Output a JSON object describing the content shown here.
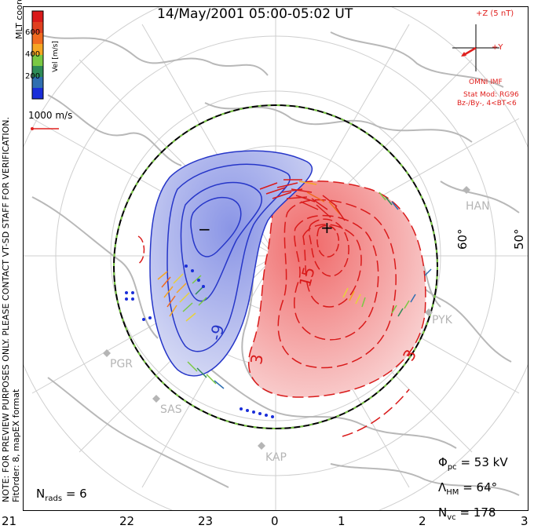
{
  "title": "14/May/2001  05:00-05:02  UT",
  "note": {
    "line1": "NOTE: FOR PREVIEW PURPOSES ONLY. PLEASE CONTACT VT-SD STAFF FOR VERIFICATION.",
    "line2": "FitOrder: 8, mapEX format"
  },
  "colorbar": {
    "title": "MLT coordinates",
    "unit": "Vel [m/s]",
    "ticks": [
      "600",
      "400",
      "200"
    ],
    "colors": [
      "#d91a1a",
      "#f06a1f",
      "#f5a623",
      "#e8d13a",
      "#7ac943",
      "#2e8b57",
      "#2f6fb0",
      "#1a2ed9"
    ]
  },
  "scale_vector": {
    "label": "1000 m/s",
    "color": "#e0201e"
  },
  "imf": {
    "z_label": "+Z (5 nT)",
    "y_label": "+Y",
    "source": "OMNI IMF",
    "stat_mod": "Stat Mod: RG96",
    "condition": "Bz-/By-, 4<BT<6",
    "color": "#e0201e"
  },
  "latitude_labels": [
    "60°",
    "50°"
  ],
  "stations": [
    "HAN",
    "PYK",
    "PGR",
    "SAS",
    "KAP"
  ],
  "contour_labels": [
    "15",
    "-9",
    "3",
    "3"
  ],
  "extrema": {
    "min": "−",
    "max": "+"
  },
  "stats": {
    "phi_pc": {
      "symbol": "Φ",
      "sub": "pc",
      "value": "= 53 kV"
    },
    "lambda_hm": {
      "symbol": "Λ",
      "sub": "HM",
      "value": "= 64°"
    },
    "n_vc": {
      "symbol": "N",
      "sub": "vc",
      "value": "= 178"
    },
    "n_rads": {
      "symbol": "N",
      "sub": "rads",
      "value": "= 6"
    }
  },
  "mlt_labels": [
    "21",
    "22",
    "23",
    "0",
    "1",
    "2",
    "3"
  ],
  "colors": {
    "positive_cell": "#e3393b",
    "negative_cell": "#2636c8",
    "grid": "#cfcfcf",
    "coastline": "#b8b8b8"
  }
}
